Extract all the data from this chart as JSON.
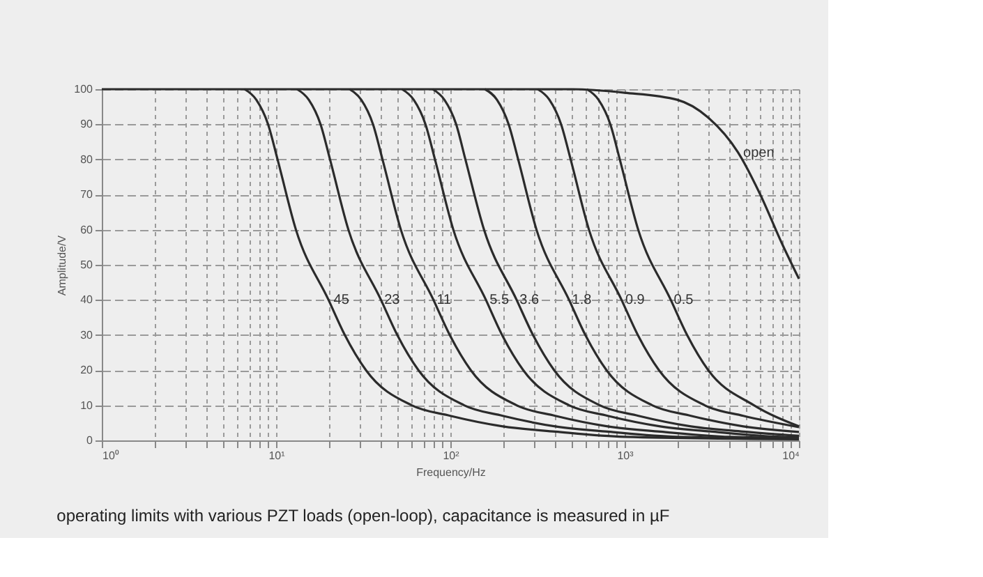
{
  "chart_data": {
    "type": "line",
    "xlabel": "Frequency/Hz",
    "ylabel": "Amplitude/V",
    "log": "x",
    "grid": true,
    "marker": "none",
    "line_style": "solid",
    "xlim": [
      1,
      10000
    ],
    "ylim": [
      0,
      100
    ],
    "xticks": [
      {
        "value": 1,
        "label": "10⁰"
      },
      {
        "value": 2,
        "label": null
      },
      {
        "value": 3,
        "label": null
      },
      {
        "value": 4,
        "label": null
      },
      {
        "value": 5,
        "label": null
      },
      {
        "value": 6,
        "label": null
      },
      {
        "value": 7,
        "label": null
      },
      {
        "value": 8,
        "label": null
      },
      {
        "value": 9,
        "label": null
      },
      {
        "value": 10,
        "label": "10¹"
      },
      {
        "value": 20,
        "label": null
      },
      {
        "value": 30,
        "label": null
      },
      {
        "value": 40,
        "label": null
      },
      {
        "value": 50,
        "label": null
      },
      {
        "value": 60,
        "label": null
      },
      {
        "value": 70,
        "label": null
      },
      {
        "value": 80,
        "label": null
      },
      {
        "value": 90,
        "label": null
      },
      {
        "value": 100,
        "label": "10²"
      },
      {
        "value": 200,
        "label": null
      },
      {
        "value": 300,
        "label": null
      },
      {
        "value": 400,
        "label": null
      },
      {
        "value": 500,
        "label": null
      },
      {
        "value": 600,
        "label": null
      },
      {
        "value": 700,
        "label": null
      },
      {
        "value": 800,
        "label": null
      },
      {
        "value": 900,
        "label": null
      },
      {
        "value": 1000,
        "label": "10³"
      },
      {
        "value": 2000,
        "label": null
      },
      {
        "value": 3000,
        "label": null
      },
      {
        "value": 4000,
        "label": null
      },
      {
        "value": 5000,
        "label": null
      },
      {
        "value": 6000,
        "label": null
      },
      {
        "value": 7000,
        "label": null
      },
      {
        "value": 8000,
        "label": null
      },
      {
        "value": 9000,
        "label": null
      },
      {
        "value": 10000,
        "label": "10⁴"
      }
    ],
    "yticks": [
      0,
      10,
      20,
      30,
      40,
      50,
      60,
      70,
      80,
      90,
      100
    ],
    "series": [
      {
        "color": "#2b2b2b",
        "x": [
          6.6,
          7.7,
          9,
          10.2,
          13,
          20,
          24.8,
          32.8,
          60,
          100,
          200,
          400,
          1000,
          10000
        ],
        "values": [
          100,
          97,
          90,
          80,
          60,
          40,
          30,
          20,
          10,
          7,
          4,
          2.5,
          1,
          0.3
        ]
      },
      {
        "color": "#2b2b2b",
        "x": [
          13.2,
          15.4,
          18,
          20.4,
          26,
          40,
          49.6,
          65.6,
          120,
          200,
          400,
          800,
          2000,
          10000
        ],
        "values": [
          100,
          97,
          90,
          80,
          60,
          40,
          30,
          20,
          10,
          7,
          4,
          2.5,
          1,
          0.5
        ]
      },
      {
        "color": "#2b2b2b",
        "x": [
          26.4,
          30.8,
          36,
          40.8,
          52,
          80,
          99.2,
          131,
          240,
          400,
          800,
          1600,
          4000,
          10000
        ],
        "values": [
          100,
          97,
          90,
          80,
          60,
          40,
          30,
          20,
          10,
          7,
          4,
          2.5,
          1,
          0.7
        ]
      },
      {
        "color": "#2b2b2b",
        "x": [
          52.8,
          61.6,
          72,
          81.6,
          104,
          160,
          198,
          262,
          480,
          800,
          1600,
          3200,
          8000,
          10000
        ],
        "values": [
          100,
          97,
          90,
          80,
          60,
          40,
          30,
          20,
          10,
          7,
          4,
          2.5,
          1,
          0.9
        ]
      },
      {
        "color": "#2b2b2b",
        "x": [
          79.2,
          92.4,
          108,
          122,
          156,
          240,
          298,
          394,
          720,
          1200,
          2400,
          4800,
          10000
        ],
        "values": [
          100,
          97,
          90,
          80,
          60,
          40,
          30,
          20,
          10,
          7,
          4,
          2.5,
          1.3
        ]
      },
      {
        "color": "#2b2b2b",
        "x": [
          158,
          185,
          216,
          245,
          312,
          480,
          595,
          787,
          1440,
          2400,
          4800,
          10000
        ],
        "values": [
          100,
          97,
          90,
          80,
          60,
          40,
          30,
          20,
          10,
          7,
          4,
          2.4
        ]
      },
      {
        "color": "#2b2b2b",
        "x": [
          317,
          370,
          432,
          490,
          624,
          960,
          1190,
          1574,
          2880,
          4800,
          10000
        ],
        "values": [
          100,
          97,
          90,
          80,
          60,
          40,
          30,
          20,
          10,
          7,
          3.8
        ]
      },
      {
        "color": "#2b2b2b",
        "x": [
          607,
          708,
          828,
          938,
          1196,
          1840,
          2282,
          3018,
          5520,
          10000
        ],
        "values": [
          100,
          97,
          90,
          80,
          60,
          40,
          30,
          20,
          10,
          4
        ]
      },
      {
        "color": "#2b2b2b",
        "x": [
          1,
          500,
          1000,
          2000,
          3000,
          4470,
          6000,
          8000,
          10000
        ],
        "values": [
          100,
          100,
          99,
          97,
          92,
          82,
          70,
          56,
          46
        ]
      }
    ],
    "annotations": [
      {
        "text": "45",
        "x": 21,
        "y": 40
      },
      {
        "text": "23",
        "x": 41,
        "y": 40
      },
      {
        "text": "11",
        "x": 82,
        "y": 40
      },
      {
        "text": "5.5",
        "x": 165,
        "y": 40
      },
      {
        "text": "3.6",
        "x": 245,
        "y": 40
      },
      {
        "text": "1.8",
        "x": 490,
        "y": 40
      },
      {
        "text": "0.9",
        "x": 990,
        "y": 40
      },
      {
        "text": "0.5",
        "x": 1880,
        "y": 40
      },
      {
        "text": "open",
        "x": 4700,
        "y": 82
      },
      "operating limits with various PZT loads (open-loop), capacitance is measured in µF"
    ]
  }
}
